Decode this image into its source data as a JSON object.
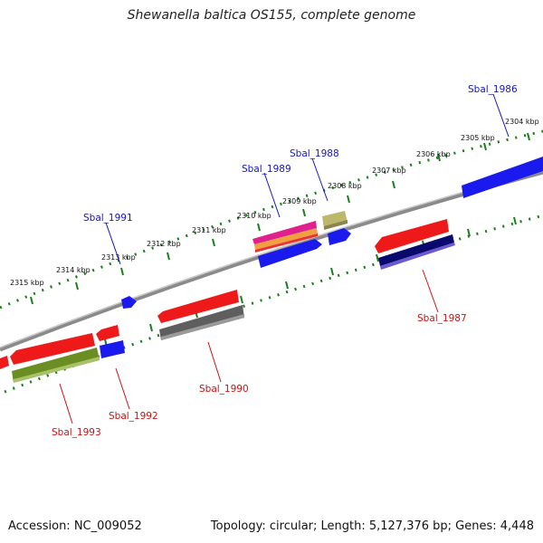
{
  "title": "Shewanella baltica OS155, complete genome",
  "footer": {
    "accession": "Accession: NC_009052",
    "topology": "Topology: circular; Length: 5,127,376 bp; Genes: 4,448"
  },
  "colors": {
    "backbone": "#8a8a8a",
    "tick": "#1a7f1a",
    "forward_label": "#1515c8",
    "reverse_label": "#d01010",
    "red": "#ee1a1a",
    "blue": "#1a1aee",
    "olive": "#6b8e23",
    "gray": "#5e5e5e",
    "navy": "#0a0a6e",
    "khaki": "#bdb76b",
    "magenta": "#e0208c"
  },
  "ticks": [
    {
      "label": "2304 kbp"
    },
    {
      "label": "2305 kbp"
    },
    {
      "label": "2306 kbp"
    },
    {
      "label": "2307 kbp"
    },
    {
      "label": "2308 kbp"
    },
    {
      "label": "2309 kbp"
    },
    {
      "label": "2310 kbp"
    },
    {
      "label": "2311 kbp"
    },
    {
      "label": "2312 kbp"
    },
    {
      "label": "2313 kbp"
    },
    {
      "label": "2314 kbp"
    },
    {
      "label": "2315 kbp"
    }
  ],
  "gene_labels": {
    "sbal_1986": "Sbal_1986",
    "sbal_1987": "Sbal_1987",
    "sbal_1988": "Sbal_1988",
    "sbal_1989": "Sbal_1989",
    "sbal_1990": "Sbal_1990",
    "sbal_1991": "Sbal_1991",
    "sbal_1992": "Sbal_1992",
    "sbal_1993": "Sbal_1993"
  }
}
